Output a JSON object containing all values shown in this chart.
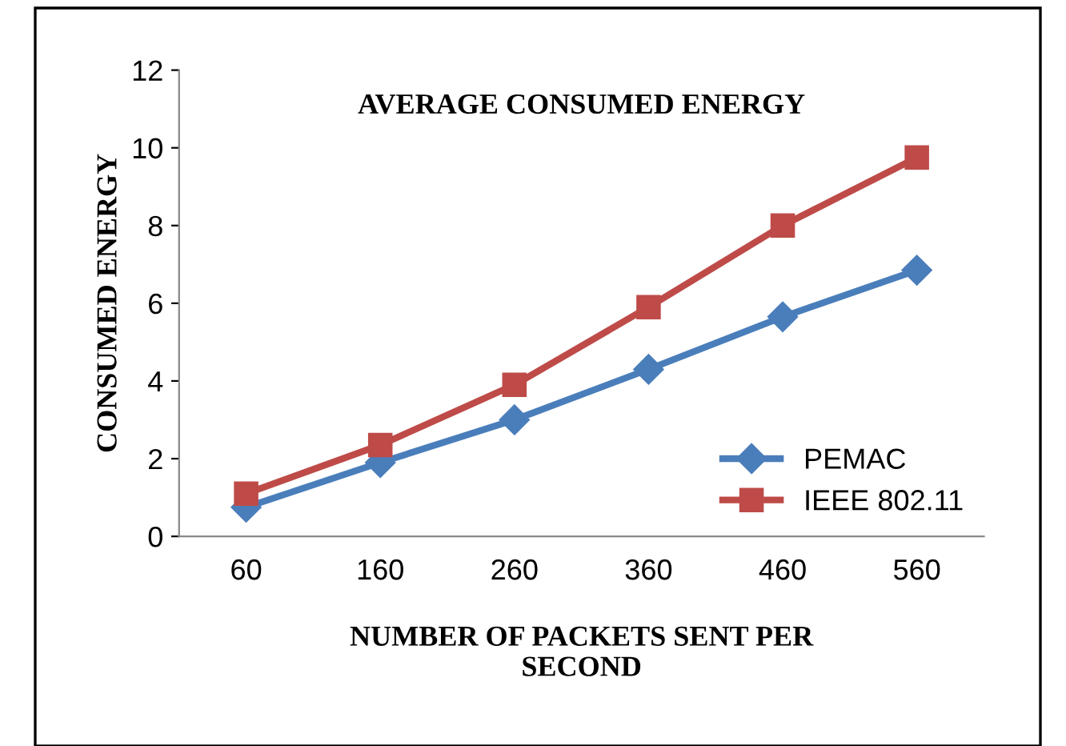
{
  "chart_data": {
    "type": "line",
    "title": "AVERAGE CONSUMED ENERGY",
    "xlabel": "NUMBER OF PACKETS SENT PER\nSECOND",
    "ylabel": "CONSUMED ENERGY",
    "categories": [
      "60",
      "160",
      "260",
      "360",
      "460",
      "560"
    ],
    "series": [
      {
        "name": "PEMAC",
        "color": "#4a7ebb",
        "marker": "diamond",
        "values": [
          0.75,
          1.9,
          3.0,
          4.3,
          5.65,
          6.85
        ]
      },
      {
        "name": "IEEE 802.11",
        "color": "#be4b48",
        "marker": "square",
        "values": [
          1.1,
          2.35,
          3.9,
          5.9,
          8.0,
          9.75
        ]
      }
    ],
    "ylim": [
      0,
      12
    ],
    "yticks": [
      0,
      2,
      4,
      6,
      8,
      10,
      12
    ],
    "grid": false,
    "legend": "bottom right",
    "line_style": "solid"
  }
}
